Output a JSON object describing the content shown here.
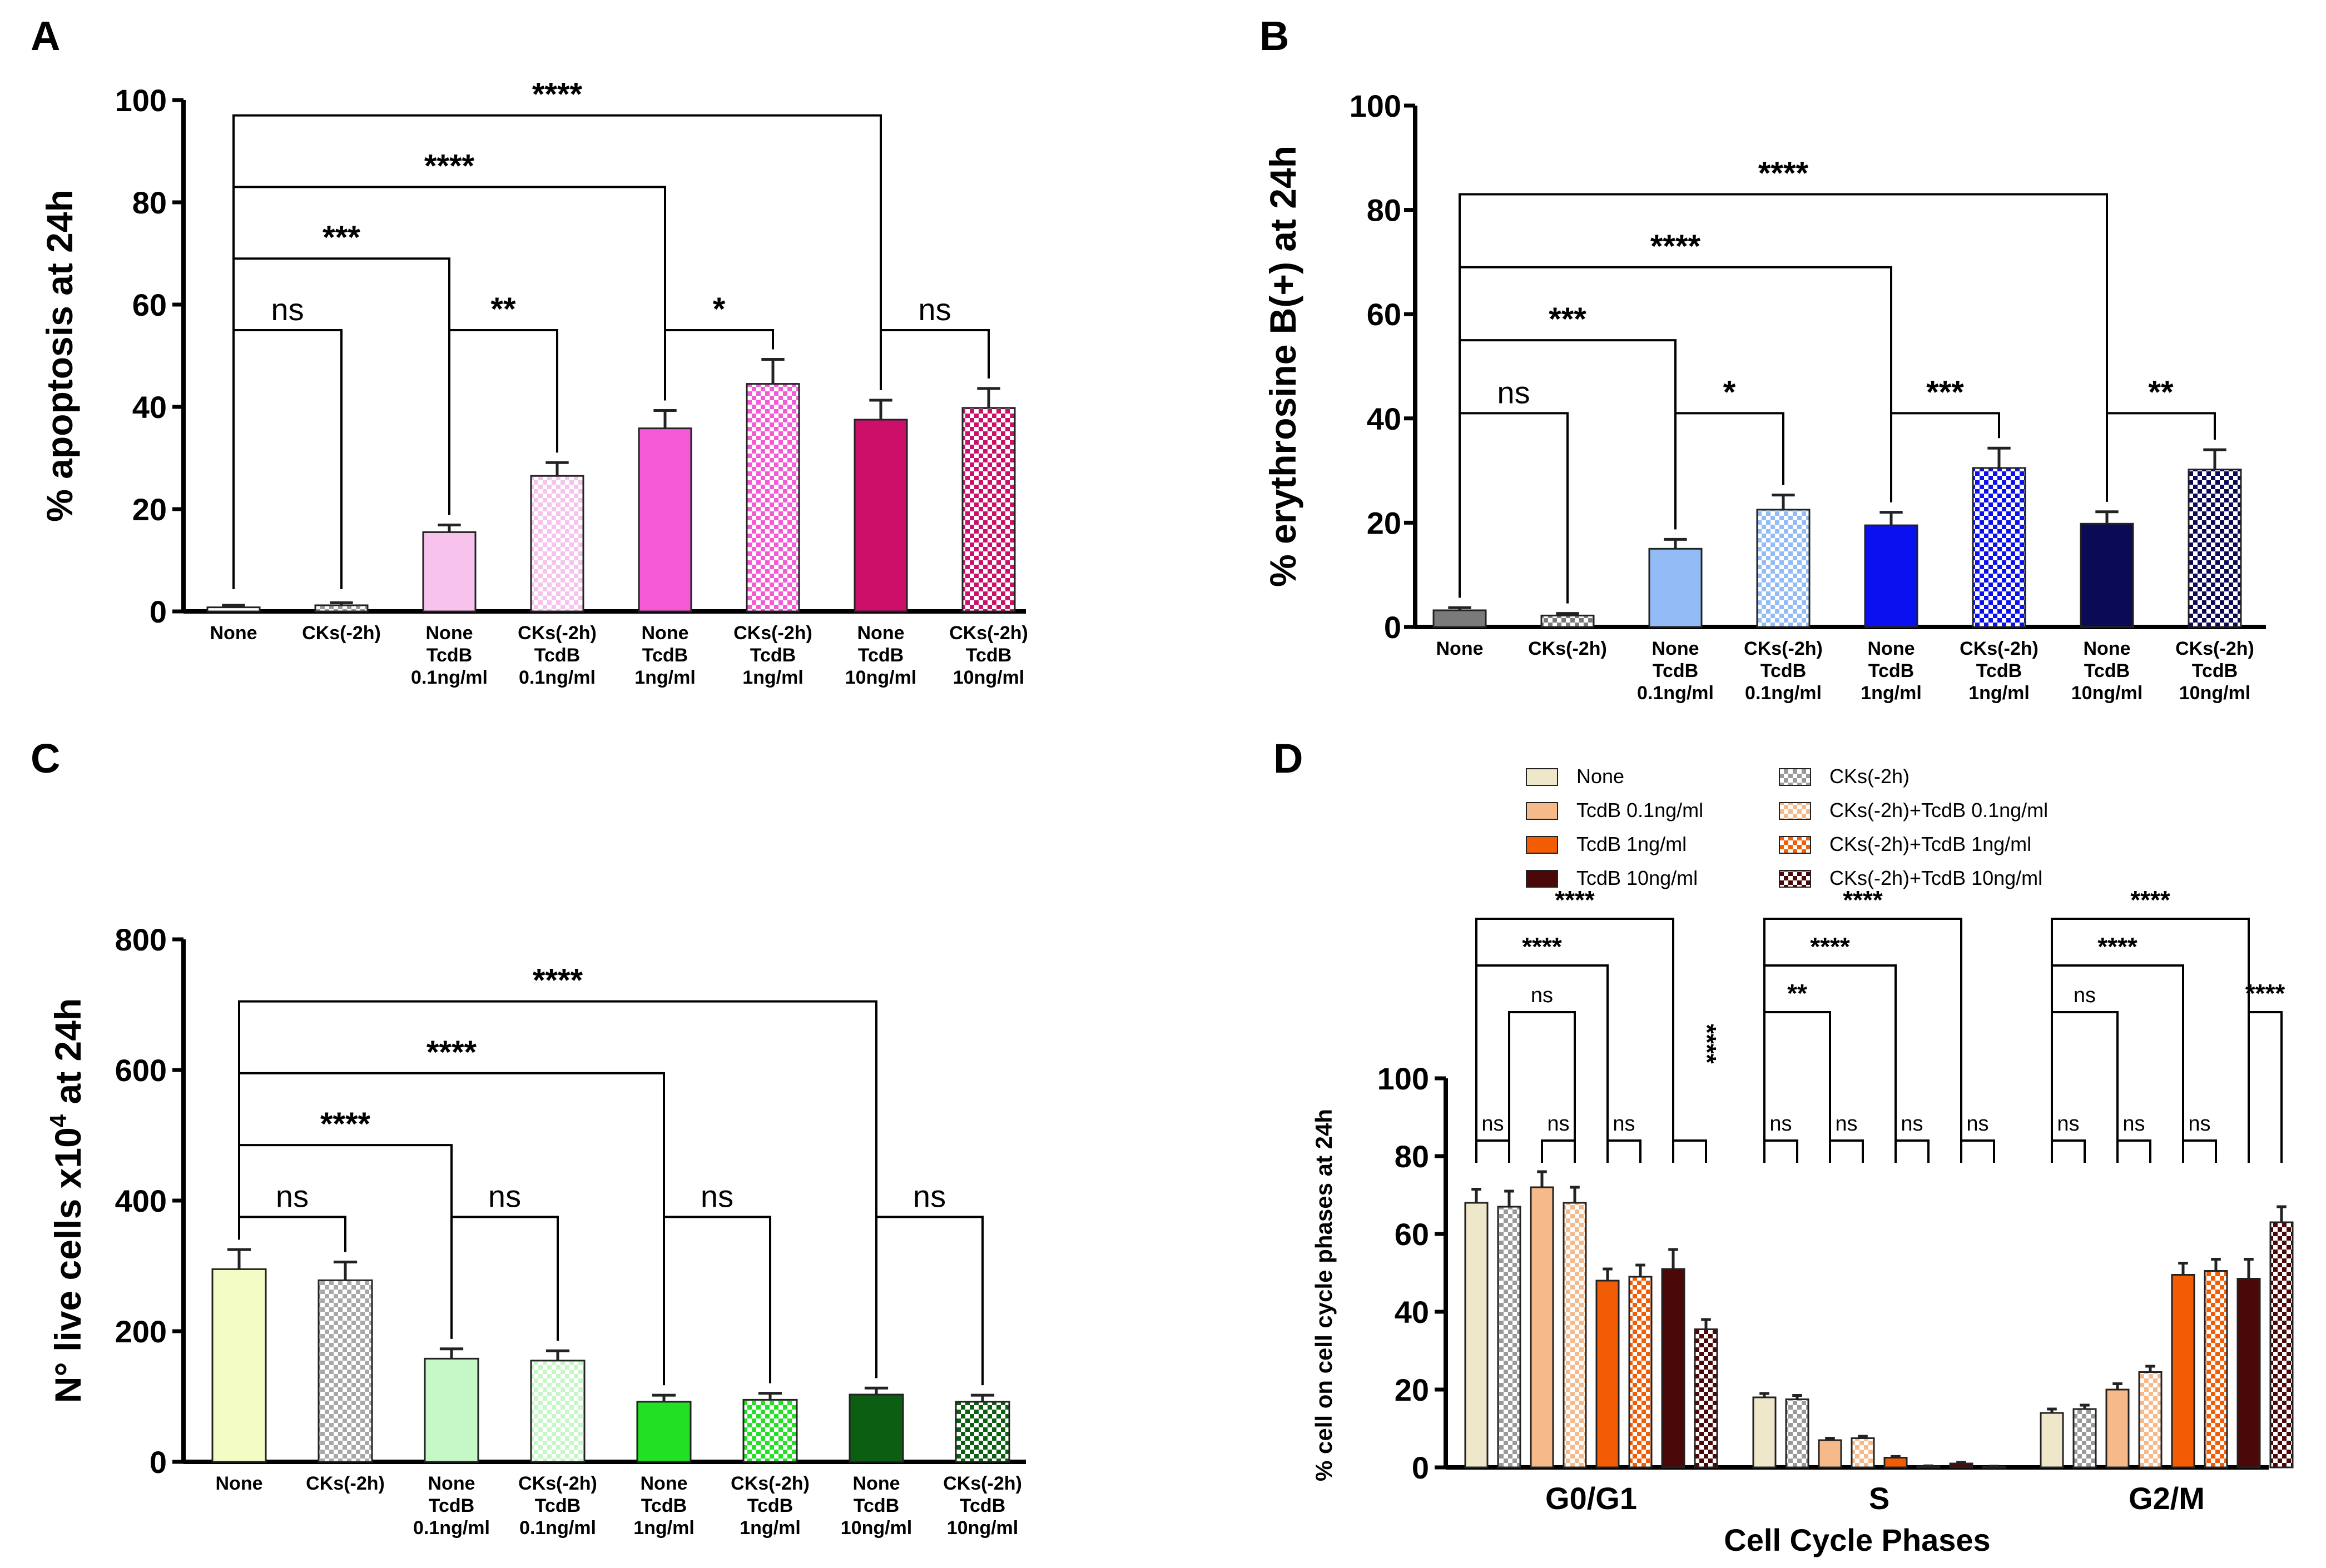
{
  "chart_data": [
    {
      "panel": "A",
      "type": "bar",
      "ylabel": "% apoptosis at 24h",
      "ylim": [
        0,
        100
      ],
      "yticks": [
        0,
        20,
        40,
        60,
        80,
        100
      ],
      "categories": [
        [
          "None"
        ],
        [
          "CKs(-2h)"
        ],
        [
          "None",
          "TcdB",
          "0.1ng/ml"
        ],
        [
          "CKs(-2h)",
          "TcdB",
          "0.1ng/ml"
        ],
        [
          "None",
          "TcdB",
          "1ng/ml"
        ],
        [
          "CKs(-2h)",
          "TcdB",
          "1ng/ml"
        ],
        [
          "None",
          "TcdB",
          "10ng/ml"
        ],
        [
          "CKs(-2h)",
          "TcdB",
          "10ng/ml"
        ]
      ],
      "values": [
        0.8,
        1.2,
        15.5,
        26.5,
        35.8,
        44.5,
        37.5,
        39.8
      ],
      "errors": [
        0.4,
        0.5,
        1.4,
        2.6,
        3.5,
        4.8,
        3.8,
        3.8
      ],
      "colors": [
        "#ffffff",
        "#ffffff",
        "#f7c2ec",
        "#f7c2ec",
        "#f45ad6",
        "#f45ad6",
        "#cc0f69",
        "#cc0f69"
      ],
      "patterned": [
        false,
        true,
        false,
        true,
        false,
        true,
        false,
        true
      ],
      "comparisons": [
        {
          "a": 0,
          "b": 1,
          "y": 55,
          "label": "ns"
        },
        {
          "a": 2,
          "b": 3,
          "y": 55,
          "label": "**"
        },
        {
          "a": 4,
          "b": 5,
          "y": 55,
          "label": "*"
        },
        {
          "a": 6,
          "b": 7,
          "y": 55,
          "label": "ns"
        },
        {
          "a": 0,
          "b": 2,
          "y": 69,
          "label": "***"
        },
        {
          "a": 0,
          "b": 4,
          "y": 83,
          "label": "****"
        },
        {
          "a": 0,
          "b": 6,
          "y": 97,
          "label": "****"
        }
      ]
    },
    {
      "panel": "B",
      "type": "bar",
      "ylabel": "% erythrosine B(+) at 24h",
      "ylim": [
        0,
        100
      ],
      "yticks": [
        0,
        20,
        40,
        60,
        80,
        100
      ],
      "categories": [
        [
          "None"
        ],
        [
          "CKs(-2h)"
        ],
        [
          "None",
          "TcdB",
          "0.1ng/ml"
        ],
        [
          "CKs(-2h)",
          "TcdB",
          "0.1ng/ml"
        ],
        [
          "None",
          "TcdB",
          "1ng/ml"
        ],
        [
          "CKs(-2h)",
          "TcdB",
          "1ng/ml"
        ],
        [
          "None",
          "TcdB",
          "10ng/ml"
        ],
        [
          "CKs(-2h)",
          "TcdB",
          "10ng/ml"
        ]
      ],
      "values": [
        3.2,
        2.2,
        15.0,
        22.5,
        19.5,
        30.5,
        19.8,
        30.2
      ],
      "errors": [
        0.5,
        0.4,
        1.8,
        2.8,
        2.5,
        3.8,
        2.3,
        3.8
      ],
      "colors": [
        "#7a7a7a",
        "#7a7a7a",
        "#93bcf7",
        "#93bcf7",
        "#0b10f0",
        "#0b10f0",
        "#0a0a55",
        "#0a0a55"
      ],
      "patterned": [
        false,
        true,
        false,
        true,
        false,
        true,
        false,
        true
      ],
      "comparisons": [
        {
          "a": 0,
          "b": 1,
          "y": 41,
          "label": "ns"
        },
        {
          "a": 2,
          "b": 3,
          "y": 41,
          "label": "*"
        },
        {
          "a": 4,
          "b": 5,
          "y": 41,
          "label": "***"
        },
        {
          "a": 6,
          "b": 7,
          "y": 41,
          "label": "**"
        },
        {
          "a": 0,
          "b": 2,
          "y": 55,
          "label": "***"
        },
        {
          "a": 0,
          "b": 4,
          "y": 69,
          "label": "****"
        },
        {
          "a": 0,
          "b": 6,
          "y": 83,
          "label": "****"
        }
      ]
    },
    {
      "panel": "C",
      "type": "bar",
      "ylabel_main": "N° live cells x10",
      "ylabel_sup": "4",
      "ylabel_tail": " at 24h",
      "ylim": [
        0,
        800
      ],
      "yticks": [
        0,
        200,
        400,
        600,
        800
      ],
      "categories": [
        [
          "None"
        ],
        [
          "CKs(-2h)"
        ],
        [
          "None",
          "TcdB",
          "0.1ng/ml"
        ],
        [
          "CKs(-2h)",
          "TcdB",
          "0.1ng/ml"
        ],
        [
          "None",
          "TcdB",
          "1ng/ml"
        ],
        [
          "CKs(-2h)",
          "TcdB",
          "1ng/ml"
        ],
        [
          "None",
          "TcdB",
          "10ng/ml"
        ],
        [
          "CKs(-2h)",
          "TcdB",
          "10ng/ml"
        ]
      ],
      "values": [
        295,
        278,
        158,
        155,
        92,
        95,
        103,
        92
      ],
      "errors": [
        30,
        28,
        15,
        15,
        10,
        10,
        10,
        10
      ],
      "colors": [
        "#f3fcc4",
        "#a8a8a8",
        "#c6f7c7",
        "#c6f7c7",
        "#22e022",
        "#22e022",
        "#0b5e12",
        "#0b5e12"
      ],
      "patterned": [
        false,
        true,
        false,
        true,
        false,
        true,
        false,
        true
      ],
      "comparisons": [
        {
          "a": 0,
          "b": 1,
          "y": 375,
          "label": "ns"
        },
        {
          "a": 2,
          "b": 3,
          "y": 375,
          "label": "ns"
        },
        {
          "a": 4,
          "b": 5,
          "y": 375,
          "label": "ns"
        },
        {
          "a": 6,
          "b": 7,
          "y": 375,
          "label": "ns"
        },
        {
          "a": 0,
          "b": 2,
          "y": 485,
          "label": "****"
        },
        {
          "a": 0,
          "b": 4,
          "y": 595,
          "label": "****"
        },
        {
          "a": 0,
          "b": 6,
          "y": 705,
          "label": "****"
        }
      ]
    },
    {
      "panel": "D",
      "type": "bar",
      "ylabel": "% cell on cell cycle phases at  24h",
      "xlabel": "Cell Cycle Phases",
      "ylim": [
        0,
        100
      ],
      "yticks": [
        0,
        20,
        40,
        60,
        80,
        100
      ],
      "categories": [
        "G0/G1",
        "S",
        "G2/M"
      ],
      "legend": [
        "None",
        "CKs(-2h)",
        "TcdB 0.1ng/ml",
        "CKs(-2h)+TcdB 0.1ng/ml",
        "TcdB 1ng/ml",
        "CKs(-2h)+TcdB 1ng/ml",
        "TcdB 10ng/ml",
        "CKs(-2h)+TcdB 10ng/ml"
      ],
      "series": [
        {
          "name": "None",
          "color": "#efe7c9",
          "patterned": false,
          "values": [
            68,
            18,
            14
          ],
          "errors": [
            3.5,
            1.0,
            1.0
          ]
        },
        {
          "name": "CKs(-2h)",
          "color": "#9a9a9a",
          "patterned": true,
          "values": [
            67,
            17.5,
            15
          ],
          "errors": [
            4.0,
            1.0,
            1.0
          ]
        },
        {
          "name": "TcdB 0.1ng/ml",
          "color": "#f6b98a",
          "patterned": false,
          "values": [
            72,
            7,
            20
          ],
          "errors": [
            4.0,
            0.5,
            1.5
          ]
        },
        {
          "name": "CKs(-2h)+TcdB 0.1ng/ml",
          "color": "#f6b98a",
          "patterned": true,
          "values": [
            68,
            7.5,
            24.5
          ],
          "errors": [
            4.0,
            0.5,
            1.5
          ]
        },
        {
          "name": "TcdB 1ng/ml",
          "color": "#f25c05",
          "patterned": false,
          "values": [
            48,
            2.5,
            49.5
          ],
          "errors": [
            3.0,
            0.3,
            3.0
          ]
        },
        {
          "name": "CKs(-2h)+TcdB 1ng/ml",
          "color": "#f25c05",
          "patterned": true,
          "values": [
            49,
            0.3,
            50.5
          ],
          "errors": [
            3.0,
            0.1,
            3.0
          ]
        },
        {
          "name": "TcdB 10ng/ml",
          "color": "#4a0808",
          "patterned": false,
          "values": [
            51,
            1,
            48.5
          ],
          "errors": [
            5.0,
            0.3,
            5.0
          ]
        },
        {
          "name": "CKs(-2h)+TcdB 10ng/ml",
          "color": "#4a0808",
          "patterned": true,
          "values": [
            35.5,
            0.2,
            63
          ],
          "errors": [
            2.5,
            0.1,
            4.0
          ]
        }
      ],
      "comparisons": [
        {
          "group": 0,
          "a": 0,
          "b": 1,
          "y": 84,
          "label": "ns"
        },
        {
          "group": 0,
          "a": 2,
          "b": 3,
          "y": 84,
          "label": "ns"
        },
        {
          "group": 0,
          "a": 4,
          "b": 5,
          "y": 84,
          "label": "ns"
        },
        {
          "group": 0,
          "a": 6,
          "b": 7,
          "y": 84,
          "label": "****",
          "vertical": true
        },
        {
          "group": 0,
          "a": 1,
          "b": 3,
          "y": 117,
          "label": "ns"
        },
        {
          "group": 0,
          "a": 0,
          "b": 4,
          "y": 129,
          "label": "****"
        },
        {
          "group": 0,
          "a": 0,
          "b": 6,
          "y": 141,
          "label": "****"
        },
        {
          "group": 1,
          "a": 0,
          "b": 1,
          "y": 84,
          "label": "ns"
        },
        {
          "group": 1,
          "a": 2,
          "b": 3,
          "y": 84,
          "label": "ns"
        },
        {
          "group": 1,
          "a": 4,
          "b": 5,
          "y": 84,
          "label": "ns"
        },
        {
          "group": 1,
          "a": 6,
          "b": 7,
          "y": 84,
          "label": "ns"
        },
        {
          "group": 1,
          "a": 0,
          "b": 2,
          "y": 117,
          "label": "**"
        },
        {
          "group": 1,
          "a": 0,
          "b": 4,
          "y": 129,
          "label": "****"
        },
        {
          "group": 1,
          "a": 0,
          "b": 6,
          "y": 141,
          "label": "****"
        },
        {
          "group": 2,
          "a": 0,
          "b": 1,
          "y": 84,
          "label": "ns"
        },
        {
          "group": 2,
          "a": 2,
          "b": 3,
          "y": 84,
          "label": "ns"
        },
        {
          "group": 2,
          "a": 4,
          "b": 5,
          "y": 84,
          "label": "ns"
        },
        {
          "group": 2,
          "a": 6,
          "b": 7,
          "y": 117,
          "label": "****"
        },
        {
          "group": 2,
          "a": 0,
          "b": 2,
          "y": 117,
          "label": "ns"
        },
        {
          "group": 2,
          "a": 0,
          "b": 4,
          "y": 129,
          "label": "****"
        },
        {
          "group": 2,
          "a": 0,
          "b": 6,
          "y": 141,
          "label": "****"
        }
      ]
    }
  ]
}
